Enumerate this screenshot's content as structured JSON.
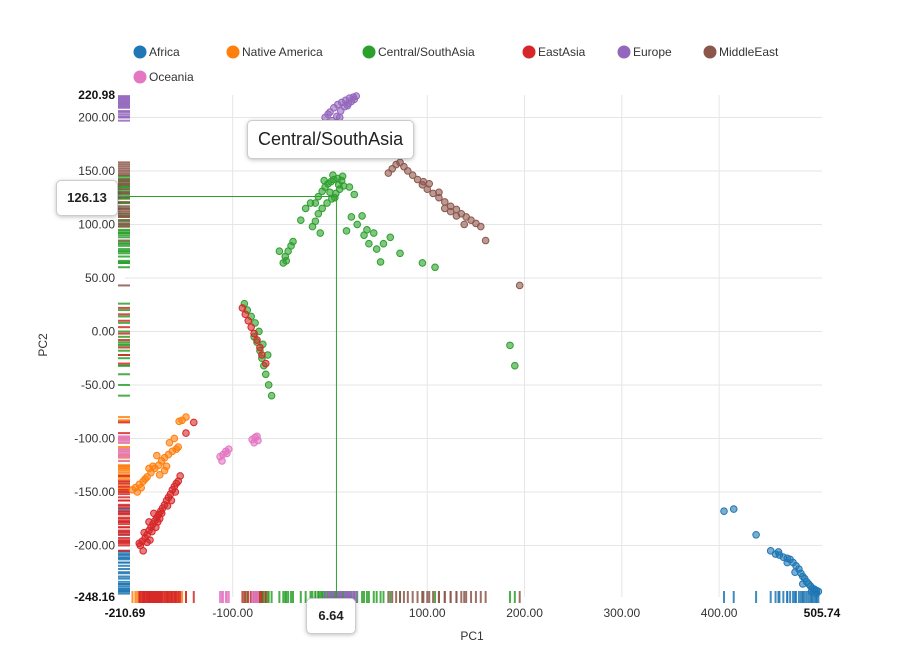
{
  "chart_data": {
    "type": "scatter",
    "xlabel": "PC1",
    "ylabel": "PC2",
    "xlim": [
      -210.69,
      505.74
    ],
    "ylim": [
      -248.16,
      220.98
    ],
    "x_ticks": [
      "-100.00",
      "100.00",
      "200.00",
      "300.00",
      "400.00"
    ],
    "x_tick_values": [
      -100,
      100,
      200,
      300,
      400
    ],
    "x_min_label": "-210.69",
    "x_max_label": "505.74",
    "y_ticks": [
      "200.00",
      "150.00",
      "100.00",
      "50.00",
      "0.00",
      "-50.00",
      "-100.00",
      "-150.00",
      "-200.00"
    ],
    "y_tick_values": [
      200,
      150,
      100,
      50,
      0,
      -50,
      -100,
      -150,
      -200
    ],
    "y_min_label": "-248.16",
    "y_max_label": "220.98",
    "grid": true,
    "legend_position": "top",
    "series": [
      {
        "name": "Africa",
        "color": "#1f77b4",
        "points": [
          [
            405,
            -168
          ],
          [
            415,
            -166
          ],
          [
            438,
            -190
          ],
          [
            453,
            -205
          ],
          [
            458,
            -208
          ],
          [
            462,
            -209
          ],
          [
            466,
            -211
          ],
          [
            470,
            -212
          ],
          [
            473,
            -213
          ],
          [
            476,
            -216
          ],
          [
            479,
            -219
          ],
          [
            482,
            -222
          ],
          [
            484,
            -226
          ],
          [
            486,
            -229
          ],
          [
            488,
            -231
          ],
          [
            490,
            -234
          ],
          [
            492,
            -236
          ],
          [
            494,
            -238
          ],
          [
            496,
            -240
          ],
          [
            498,
            -241
          ],
          [
            500,
            -242
          ],
          [
            502,
            -243
          ],
          [
            478,
            -225
          ],
          [
            486,
            -236
          ],
          [
            495,
            -243
          ],
          [
            500,
            -245
          ],
          [
            470,
            -216
          ],
          [
            461,
            -206
          ]
        ]
      },
      {
        "name": "Native America",
        "color": "#ff7f0e",
        "points": [
          [
            -200,
            -146
          ],
          [
            -196,
            -143
          ],
          [
            -192,
            -140
          ],
          [
            -188,
            -136
          ],
          [
            -184,
            -132
          ],
          [
            -180,
            -128
          ],
          [
            -176,
            -125
          ],
          [
            -173,
            -121
          ],
          [
            -170,
            -118
          ],
          [
            -166,
            -115
          ],
          [
            -162,
            -112
          ],
          [
            -158,
            -110
          ],
          [
            -175,
            -134
          ],
          [
            -182,
            -126
          ],
          [
            -190,
            -138
          ],
          [
            -198,
            -150
          ],
          [
            -155,
            -84
          ],
          [
            -152,
            -83
          ],
          [
            -148,
            -80
          ],
          [
            -160,
            -100
          ],
          [
            -165,
            -104
          ],
          [
            -170,
            -130
          ],
          [
            -186,
            -128
          ],
          [
            -194,
            -146
          ],
          [
            -203,
            -148
          ],
          [
            -156,
            -108
          ],
          [
            -178,
            -116
          ],
          [
            -168,
            -126
          ]
        ]
      },
      {
        "name": "Central/SouthAsia",
        "color": "#2ca02c",
        "points": [
          [
            -15,
            120
          ],
          [
            -12,
            126
          ],
          [
            -8,
            131
          ],
          [
            -5,
            135
          ],
          [
            -2,
            138
          ],
          [
            1,
            140
          ],
          [
            4,
            142
          ],
          [
            8,
            143
          ],
          [
            12,
            141
          ],
          [
            14,
            136
          ],
          [
            10,
            133
          ],
          [
            6,
            129
          ],
          [
            2,
            124
          ],
          [
            -3,
            120
          ],
          [
            -8,
            115
          ],
          [
            -12,
            110
          ],
          [
            -15,
            103
          ],
          [
            -18,
            98
          ],
          [
            -20,
            120
          ],
          [
            0,
            130
          ],
          [
            5,
            125
          ],
          [
            9,
            137
          ],
          [
            -6,
            141
          ],
          [
            3,
            146
          ],
          [
            13,
            145
          ],
          [
            -38,
            84
          ],
          [
            -40,
            80
          ],
          [
            -43,
            75
          ],
          [
            -46,
            70
          ],
          [
            -48,
            64
          ],
          [
            -52,
            75
          ],
          [
            -45,
            66
          ],
          [
            22,
            107
          ],
          [
            28,
            100
          ],
          [
            35,
            90
          ],
          [
            40,
            82
          ],
          [
            48,
            77
          ],
          [
            55,
            82
          ],
          [
            62,
            88
          ],
          [
            38,
            95
          ],
          [
            45,
            92
          ],
          [
            72,
            73
          ],
          [
            95,
            64
          ],
          [
            108,
            60
          ],
          [
            185,
            -13
          ],
          [
            190,
            -32
          ],
          [
            -60,
            -60
          ],
          [
            -63,
            -50
          ],
          [
            -66,
            -40
          ],
          [
            -68,
            -32
          ],
          [
            -70,
            -25
          ],
          [
            -72,
            -18
          ],
          [
            -75,
            -10
          ],
          [
            -78,
            -5
          ],
          [
            -73,
            0
          ],
          [
            -77,
            8
          ],
          [
            -81,
            14
          ],
          [
            -85,
            20
          ],
          [
            -88,
            26
          ],
          [
            -64,
            -22
          ],
          [
            -69,
            -12
          ],
          [
            -30,
            104
          ],
          [
            -25,
            115
          ],
          [
            20,
            135
          ],
          [
            25,
            128
          ],
          [
            -10,
            92
          ],
          [
            17,
            94
          ],
          [
            33,
            108
          ],
          [
            52,
            65
          ]
        ]
      },
      {
        "name": "EastAsia",
        "color": "#d62728",
        "points": [
          [
            -195,
            -200
          ],
          [
            -193,
            -196
          ],
          [
            -190,
            -193
          ],
          [
            -188,
            -190
          ],
          [
            -186,
            -186
          ],
          [
            -184,
            -183
          ],
          [
            -182,
            -180
          ],
          [
            -180,
            -177
          ],
          [
            -178,
            -174
          ],
          [
            -176,
            -171
          ],
          [
            -174,
            -168
          ],
          [
            -172,
            -165
          ],
          [
            -170,
            -162
          ],
          [
            -168,
            -158
          ],
          [
            -166,
            -155
          ],
          [
            -164,
            -152
          ],
          [
            -162,
            -148
          ],
          [
            -160,
            -145
          ],
          [
            -158,
            -142
          ],
          [
            -156,
            -140
          ],
          [
            -154,
            -135
          ],
          [
            -192,
            -205
          ],
          [
            -196,
            -198
          ],
          [
            -185,
            -195
          ],
          [
            -183,
            -187
          ],
          [
            -179,
            -183
          ],
          [
            -177,
            -178
          ],
          [
            -175,
            -175
          ],
          [
            -188,
            -197
          ],
          [
            -191,
            -188
          ],
          [
            -186,
            -178
          ],
          [
            -181,
            -170
          ],
          [
            -173,
            -170
          ],
          [
            -167,
            -163
          ],
          [
            -163,
            -158
          ],
          [
            -159,
            -150
          ],
          [
            -70,
            -22
          ],
          [
            -72,
            -15
          ],
          [
            -75,
            -8
          ],
          [
            -78,
            -2
          ],
          [
            -81,
            4
          ],
          [
            -84,
            10
          ],
          [
            -87,
            16
          ],
          [
            -90,
            22
          ],
          [
            -66,
            -30
          ],
          [
            -140,
            -85
          ],
          [
            -148,
            -95
          ]
        ]
      },
      {
        "name": "Europe",
        "color": "#9467bd",
        "points": [
          [
            -5,
            200
          ],
          [
            0,
            205
          ],
          [
            4,
            209
          ],
          [
            8,
            212
          ],
          [
            12,
            214
          ],
          [
            16,
            216
          ],
          [
            20,
            218
          ],
          [
            24,
            219
          ],
          [
            27,
            220
          ],
          [
            2,
            197
          ],
          [
            7,
            201
          ],
          [
            11,
            206
          ],
          [
            15,
            210
          ],
          [
            19,
            213
          ],
          [
            -2,
            203
          ],
          [
            22,
            215
          ],
          [
            25,
            217
          ],
          [
            10,
            200
          ],
          [
            18,
            211
          ]
        ]
      },
      {
        "name": "MiddleEast",
        "color": "#8c564b",
        "points": [
          [
            60,
            148
          ],
          [
            64,
            152
          ],
          [
            68,
            156
          ],
          [
            72,
            158
          ],
          [
            76,
            154
          ],
          [
            80,
            150
          ],
          [
            85,
            146
          ],
          [
            90,
            142
          ],
          [
            95,
            137
          ],
          [
            100,
            133
          ],
          [
            106,
            129
          ],
          [
            112,
            125
          ],
          [
            118,
            121
          ],
          [
            124,
            117
          ],
          [
            130,
            114
          ],
          [
            135,
            110
          ],
          [
            140,
            107
          ],
          [
            145,
            104
          ],
          [
            150,
            101
          ],
          [
            155,
            98
          ],
          [
            160,
            85
          ],
          [
            195,
            43
          ],
          [
            118,
            115
          ],
          [
            124,
            112
          ],
          [
            130,
            108
          ],
          [
            138,
            100
          ],
          [
            112,
            130
          ],
          [
            102,
            138
          ],
          [
            96,
            140
          ]
        ]
      },
      {
        "name": "Oceania",
        "color": "#e377c2",
        "points": [
          [
            -113,
            -117
          ],
          [
            -110,
            -115
          ],
          [
            -107,
            -112
          ],
          [
            -104,
            -110
          ],
          [
            -111,
            -121
          ],
          [
            -106,
            -114
          ],
          [
            -80,
            -101
          ],
          [
            -77,
            -99
          ],
          [
            -74,
            -102
          ],
          [
            -78,
            -104
          ],
          [
            -75,
            -98
          ]
        ]
      }
    ],
    "crosshair": {
      "x": 6.64,
      "y": 126.13,
      "x_label": "6.64",
      "y_label": "126.13"
    },
    "tooltip_series": "Central/SouthAsia"
  }
}
